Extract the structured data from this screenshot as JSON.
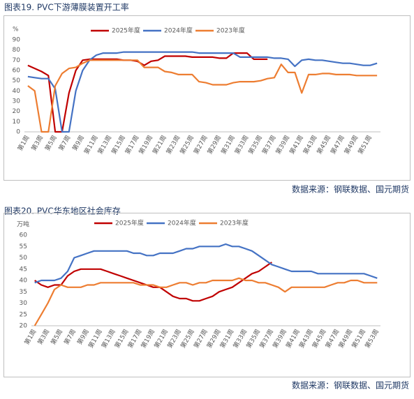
{
  "chart_data": [
    {
      "type": "line",
      "title": "图表19.  PVC下游薄膜装置开工率",
      "ylabel": "%",
      "source": "数据来源：钢联数据、国元期货",
      "categories": [
        "第1周",
        null,
        "第3周",
        null,
        "第5周",
        null,
        "第7周",
        null,
        "第9周",
        null,
        "第11周",
        null,
        "第13周",
        null,
        "第15周",
        null,
        "第17周",
        null,
        "第19周",
        null,
        "第21周",
        null,
        "第23周",
        null,
        "第25周",
        null,
        "第27周",
        null,
        "第29周",
        null,
        "第31周",
        null,
        "第33周",
        null,
        "第35周",
        null,
        "第37周",
        null,
        "第39周",
        null,
        "第41周",
        null,
        "第43周",
        null,
        "第45周",
        null,
        "第47周",
        null,
        "第49周",
        null,
        "第51周",
        null
      ],
      "ylim": [
        0,
        90
      ],
      "yticks": [
        0,
        10,
        20,
        30,
        40,
        50,
        60,
        70,
        80,
        90
      ],
      "grid": false,
      "series": [
        {
          "name": "2025年度",
          "color": "#c00000",
          "values": [
            65,
            62,
            59,
            55,
            0,
            0,
            38,
            60,
            70,
            71,
            71,
            71,
            71,
            71,
            70,
            70,
            69,
            65,
            69,
            70,
            74,
            74,
            74,
            74,
            73,
            73,
            73,
            73,
            72,
            72,
            77,
            77,
            77,
            71,
            71,
            71,
            null,
            null,
            null,
            null,
            null,
            null,
            null,
            null,
            null,
            null,
            null,
            null,
            null,
            null,
            null,
            null
          ]
        },
        {
          "name": "2024年度",
          "color": "#4472c4",
          "values": [
            54,
            53,
            52,
            52,
            42,
            0,
            0,
            40,
            60,
            70,
            75,
            77,
            77,
            77,
            78,
            78,
            78,
            78,
            78,
            78,
            78,
            78,
            78,
            78,
            78,
            77,
            77,
            77,
            77,
            77,
            77,
            73,
            73,
            73,
            73,
            73,
            72,
            72,
            71,
            64,
            70,
            71,
            70,
            70,
            69,
            68,
            67,
            67,
            66,
            65,
            65,
            67
          ]
        },
        {
          "name": "2023年度",
          "color": "#ed7d31",
          "values": [
            45,
            40,
            0,
            0,
            45,
            57,
            62,
            63,
            67,
            70,
            70,
            70,
            70,
            70,
            70,
            70,
            70,
            63,
            63,
            63,
            59,
            58,
            56,
            56,
            56,
            49,
            48,
            46,
            46,
            46,
            48,
            49,
            49,
            49,
            50,
            52,
            53,
            66,
            58,
            58,
            38,
            56,
            56,
            57,
            57,
            56,
            56,
            56,
            55,
            55,
            55,
            55
          ]
        }
      ]
    },
    {
      "type": "line",
      "title": "图表20.  PVC华东地区社会库存",
      "ylabel": "万吨",
      "source": "数据来源：钢联数据、国元期货",
      "categories": [
        "第1周",
        null,
        "第3周",
        null,
        "第5周",
        null,
        "第7周",
        null,
        "第9周",
        null,
        "第11周",
        null,
        "第13周",
        null,
        "第15周",
        null,
        "第17周",
        null,
        "第19周",
        null,
        "第21周",
        null,
        "第23周",
        null,
        "第25周",
        null,
        "第27周",
        null,
        "第29周",
        null,
        "第31周",
        null,
        "第33周",
        null,
        "第35周",
        null,
        "第37周",
        null,
        "第39周",
        null,
        "第41周",
        null,
        "第43周",
        null,
        "第45周",
        null,
        "第47周",
        null,
        "第49周",
        null,
        "第51周",
        null,
        "第53周"
      ],
      "ylim": [
        20,
        60
      ],
      "yticks": [
        20,
        25,
        30,
        35,
        40,
        45,
        50,
        55,
        60
      ],
      "grid": false,
      "series": [
        {
          "name": "2025年度",
          "color": "#c00000",
          "values": [
            40,
            38,
            37,
            38,
            38,
            42,
            44,
            45,
            45,
            45,
            45,
            44,
            43,
            42,
            41,
            40,
            39,
            38,
            37,
            37,
            35,
            33,
            32,
            32,
            31,
            31,
            32,
            33,
            35,
            36,
            37,
            39,
            41,
            43,
            44,
            46,
            48,
            null,
            null,
            null,
            null,
            null,
            null,
            null,
            null,
            null,
            null,
            null,
            null,
            null,
            null,
            null,
            null
          ]
        },
        {
          "name": "2024年度",
          "color": "#4472c4",
          "values": [
            39,
            40,
            40,
            40,
            41,
            44,
            50,
            51,
            52,
            53,
            53,
            53,
            53,
            53,
            53,
            52,
            52,
            51,
            51,
            52,
            52,
            52,
            53,
            54,
            54,
            55,
            55,
            55,
            55,
            56,
            55,
            55,
            54,
            53,
            51,
            49,
            47,
            46,
            45,
            44,
            44,
            44,
            44,
            43,
            43,
            43,
            43,
            43,
            43,
            43,
            43,
            42,
            41
          ]
        },
        {
          "name": "2023年度",
          "color": "#ed7d31",
          "values": [
            20,
            25,
            30,
            36,
            38,
            37,
            37,
            37,
            38,
            38,
            39,
            39,
            39,
            39,
            39,
            39,
            38,
            38,
            38,
            37,
            37,
            38,
            39,
            39,
            38,
            39,
            39,
            40,
            40,
            40,
            40,
            41,
            40,
            40,
            39,
            39,
            38,
            37,
            35,
            37,
            37,
            37,
            37,
            37,
            37,
            38,
            39,
            39,
            40,
            40,
            39,
            39,
            39
          ]
        }
      ]
    }
  ]
}
